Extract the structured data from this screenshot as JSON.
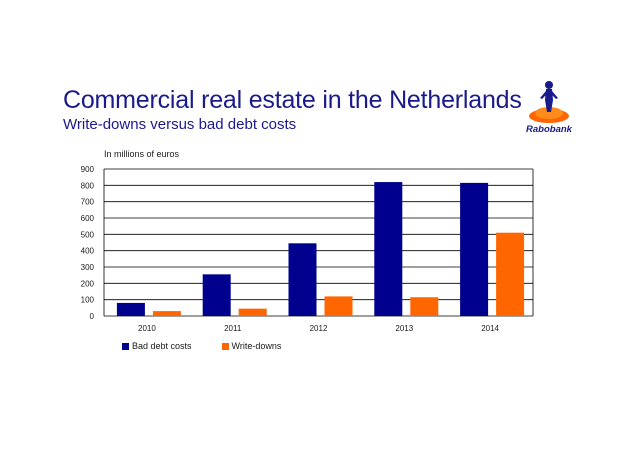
{
  "slide": {
    "title": "Commercial real estate in the Netherlands",
    "subtitle": "Write-downs versus bad debt costs",
    "logo_text": "Rabobank"
  },
  "chart_data": {
    "type": "bar",
    "units_label": "In millions of euros",
    "categories": [
      "2010",
      "2011",
      "2012",
      "2013",
      "2014"
    ],
    "series": [
      {
        "name": "Bad debt costs",
        "color": "#00008f",
        "values": [
          80,
          255,
          445,
          820,
          815
        ]
      },
      {
        "name": "Write-downs",
        "color": "#ff6600",
        "values": [
          30,
          45,
          120,
          115,
          510
        ]
      }
    ],
    "ylim": [
      0,
      900
    ],
    "yticks": [
      0,
      100,
      200,
      300,
      400,
      500,
      600,
      700,
      800,
      900
    ],
    "grid": true,
    "legend_position": "bottom-left",
    "xlabel": "",
    "ylabel": ""
  }
}
